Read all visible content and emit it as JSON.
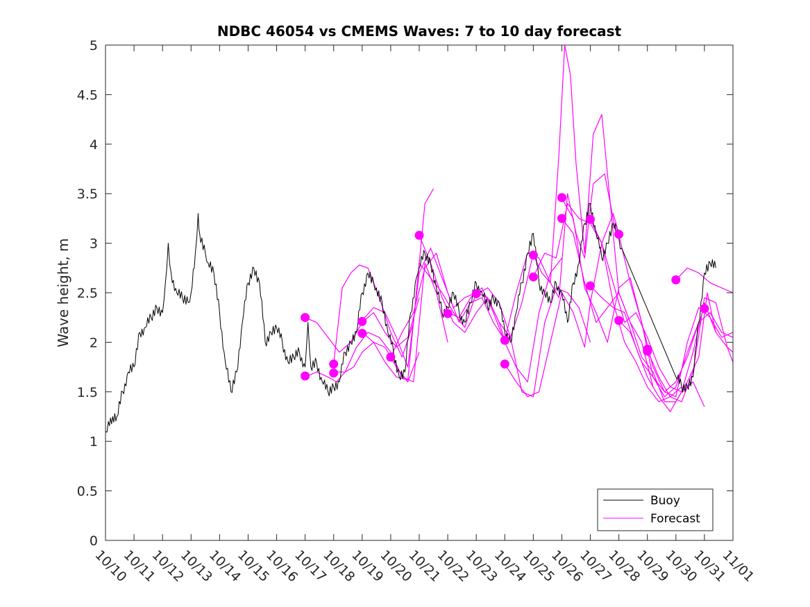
{
  "chart_data": {
    "type": "line",
    "title": "NDBC 46054 vs CMEMS Waves: 7 to 10 day forecast",
    "xlabel": "",
    "ylabel": "Wave height, m",
    "xlim": [
      0,
      22
    ],
    "ylim": [
      0,
      5
    ],
    "x_ticks": [
      0,
      1,
      2,
      3,
      4,
      5,
      6,
      7,
      8,
      9,
      10,
      11,
      12,
      13,
      14,
      15,
      16,
      17,
      18,
      19,
      20,
      21,
      22
    ],
    "x_tick_labels": [
      "10/10",
      "10/11",
      "10/12",
      "10/13",
      "10/14",
      "10/15",
      "10/16",
      "10/17",
      "10/18",
      "10/19",
      "10/20",
      "10/21",
      "10/22",
      "10/23",
      "10/24",
      "10/25",
      "10/26",
      "10/27",
      "10/28",
      "10/29",
      "10/30",
      "10/31",
      "11/01"
    ],
    "y_ticks": [
      0,
      0.5,
      1,
      1.5,
      2,
      2.5,
      3,
      3.5,
      4,
      4.5,
      5
    ],
    "y_tick_labels": [
      "0",
      "0.5",
      "1",
      "1.5",
      "2",
      "2.5",
      "3",
      "3.5",
      "4",
      "4.5",
      "5"
    ],
    "grid": false,
    "legend": {
      "location": "bottom-right",
      "entries": [
        {
          "label": "Buoy",
          "color": "#000000"
        },
        {
          "label": "Forecast",
          "color": "#ff00ff"
        }
      ]
    },
    "colors": {
      "buoy": "#000000",
      "forecast": "#ff00ff",
      "axes": "#262626"
    },
    "buoy": {
      "name": "Buoy",
      "x": [
        0,
        0.1,
        0.25,
        0.4,
        0.6,
        0.8,
        1.0,
        1.2,
        1.4,
        1.6,
        1.8,
        2.0,
        2.1,
        2.2,
        2.3,
        2.5,
        2.7,
        2.9,
        3.0,
        3.15,
        3.25,
        3.3,
        3.5,
        3.6,
        3.8,
        4.0,
        4.2,
        4.4,
        4.6,
        4.8,
        5.0,
        5.2,
        5.4,
        5.6,
        5.8,
        6.0,
        6.2,
        6.4,
        6.6,
        6.8,
        7.0,
        7.1,
        7.2,
        7.4,
        7.6,
        7.8,
        8.0,
        8.2,
        8.4,
        8.6,
        8.8,
        9.0,
        9.2,
        9.4,
        9.5,
        9.7,
        9.9,
        10.1,
        10.3,
        10.5,
        10.7,
        10.9,
        11.0,
        11.2,
        11.4,
        11.6,
        11.8,
        12.0,
        12.2,
        12.4,
        12.6,
        12.8,
        13.0,
        13.2,
        13.4,
        13.6,
        13.8,
        14.0,
        14.2,
        14.4,
        14.6,
        14.8,
        15.0,
        15.2,
        15.4,
        15.6,
        15.8,
        16.0,
        16.2,
        16.4,
        16.6,
        16.8,
        17.0,
        17.2,
        17.4,
        17.6,
        17.8,
        18.0,
        18.1,
        20.0,
        20.2,
        20.4,
        20.6,
        20.8,
        21.0,
        21.2,
        21.4
      ],
      "values": [
        1.1,
        1.2,
        1.25,
        1.25,
        1.5,
        1.7,
        1.75,
        2.1,
        2.15,
        2.25,
        2.35,
        2.3,
        2.6,
        3.0,
        2.7,
        2.5,
        2.45,
        2.4,
        2.5,
        2.9,
        3.3,
        3.1,
        2.9,
        2.8,
        2.7,
        2.3,
        1.8,
        1.5,
        1.7,
        2.2,
        2.6,
        2.75,
        2.6,
        2.0,
        2.1,
        2.15,
        2.0,
        1.8,
        1.85,
        1.9,
        1.75,
        2.2,
        1.75,
        1.8,
        1.6,
        1.5,
        1.55,
        1.6,
        1.9,
        2.0,
        2.1,
        2.5,
        2.7,
        2.6,
        2.55,
        2.4,
        2.1,
        1.9,
        1.65,
        1.7,
        2.3,
        2.65,
        2.75,
        2.9,
        2.8,
        2.55,
        2.3,
        2.35,
        2.5,
        2.3,
        2.2,
        2.4,
        2.6,
        2.5,
        2.35,
        2.45,
        2.4,
        2.1,
        2.0,
        2.3,
        2.6,
        2.9,
        3.1,
        2.6,
        2.5,
        2.4,
        2.6,
        2.5,
        2.2,
        2.6,
        2.8,
        3.2,
        3.4,
        3.1,
        2.85,
        3.0,
        3.2,
        3.05,
        2.95,
        1.65,
        1.55,
        1.55,
        1.65,
        2.2,
        2.7,
        2.8,
        2.75
      ]
    },
    "forecast_series": [
      {
        "name": "Forecast run 1",
        "x": [
          7.0,
          7.4,
          7.8,
          8.2,
          8.6,
          9.0,
          9.4,
          9.8,
          10.2,
          10.6,
          11.0
        ],
        "values": [
          2.25,
          2.2,
          2.05,
          1.9,
          2.0,
          2.2,
          2.3,
          2.1,
          1.95,
          2.05,
          2.45
        ]
      },
      {
        "name": "Forecast run 2",
        "x": [
          7.0,
          7.4,
          7.8,
          8.1,
          8.4,
          8.7,
          9.0,
          9.4,
          9.8,
          10.2,
          10.6,
          11.0
        ],
        "values": [
          1.65,
          1.7,
          1.65,
          1.6,
          1.7,
          1.75,
          1.9,
          2.0,
          1.95,
          1.75,
          1.6,
          1.9
        ]
      },
      {
        "name": "Forecast run 3",
        "x": [
          8.0,
          8.3,
          8.6,
          8.9,
          9.2,
          9.6,
          10.0,
          10.4,
          10.8,
          11.2,
          11.5
        ],
        "values": [
          1.78,
          2.55,
          2.7,
          2.78,
          2.75,
          2.45,
          2.1,
          1.85,
          2.2,
          3.4,
          3.55
        ]
      },
      {
        "name": "Forecast run 4",
        "x": [
          8.0,
          8.4,
          8.8,
          9.2,
          9.6,
          10.0,
          10.4,
          10.8,
          11.2,
          11.6,
          12.0
        ],
        "values": [
          1.7,
          1.7,
          1.95,
          2.1,
          2.05,
          1.9,
          1.65,
          1.6,
          2.8,
          2.5,
          2.0
        ]
      },
      {
        "name": "Forecast run 5",
        "x": [
          9.0,
          9.4,
          9.8,
          10.2,
          10.6,
          11.0,
          11.4,
          11.8,
          12.2,
          12.6,
          13.0
        ],
        "values": [
          2.22,
          2.35,
          2.3,
          2.05,
          1.75,
          2.7,
          2.95,
          2.65,
          2.35,
          2.45,
          2.5
        ]
      },
      {
        "name": "Forecast run 6",
        "x": [
          9.0,
          9.4,
          9.8,
          10.2,
          10.6,
          11.0,
          11.4,
          11.8,
          12.2,
          12.6,
          13.0,
          13.4,
          13.8,
          14.0
        ],
        "values": [
          2.1,
          2.0,
          1.8,
          1.65,
          1.62,
          2.8,
          2.65,
          2.5,
          2.3,
          2.15,
          2.5,
          2.45,
          2.2,
          2.02
        ]
      },
      {
        "name": "Forecast run 7",
        "x": [
          10.0,
          10.4,
          10.8,
          11.2,
          11.6,
          12.0,
          12.4,
          12.8,
          13.2,
          13.6,
          14.0
        ],
        "values": [
          1.85,
          2.1,
          2.3,
          2.75,
          2.9,
          2.5,
          2.2,
          2.4,
          2.45,
          2.2,
          2.02
        ]
      },
      {
        "name": "Forecast run 8",
        "x": [
          11.0,
          11.4,
          11.8,
          12.2,
          12.6,
          13.0,
          13.4,
          13.8,
          14.2,
          14.6,
          15.0
        ],
        "values": [
          3.08,
          2.8,
          2.45,
          2.2,
          2.1,
          2.3,
          2.45,
          2.2,
          2.05,
          2.4,
          2.9
        ]
      },
      {
        "name": "Forecast run 9",
        "x": [
          12.0,
          12.4,
          12.8,
          13.2,
          13.6,
          14.0,
          14.4,
          14.8,
          15.2,
          15.6,
          16.0
        ],
        "values": [
          2.3,
          2.25,
          2.45,
          2.55,
          2.3,
          2.0,
          1.75,
          1.6,
          2.3,
          2.7,
          2.85
        ]
      },
      {
        "name": "Forecast run 10",
        "x": [
          13.0,
          13.4,
          13.8,
          14.2,
          14.6,
          15.0,
          15.4,
          15.8,
          16.2,
          16.6,
          17.0
        ],
        "values": [
          2.48,
          2.55,
          2.4,
          2.05,
          1.5,
          1.45,
          2.2,
          2.55,
          2.5,
          2.35,
          2.0
        ]
      },
      {
        "name": "Forecast run 11",
        "x": [
          14.0,
          14.4,
          14.8,
          15.2,
          15.6,
          16.0,
          16.4,
          16.8,
          17.0,
          17.4,
          17.8,
          18.0
        ],
        "values": [
          1.78,
          1.6,
          1.45,
          1.5,
          2.0,
          2.5,
          2.3,
          1.95,
          2.4,
          3.0,
          3.3,
          3.1
        ]
      },
      {
        "name": "Forecast run 12",
        "x": [
          14.0,
          14.4,
          14.8,
          15.2,
          15.6,
          15.9,
          16.2,
          16.5,
          16.8,
          17.1,
          17.5,
          17.9
        ],
        "values": [
          2.02,
          2.5,
          2.9,
          2.85,
          2.6,
          2.45,
          3.5,
          3.1,
          2.85,
          3.6,
          3.7,
          3.1
        ]
      },
      {
        "name": "Forecast run 13",
        "x": [
          15.0,
          15.3,
          15.6,
          15.9,
          16.1,
          16.3,
          16.5,
          16.8,
          17.1,
          17.4,
          17.7,
          18.0,
          18.4,
          18.8,
          19.2
        ],
        "values": [
          2.88,
          2.7,
          2.6,
          3.9,
          5.0,
          4.7,
          3.8,
          2.9,
          4.1,
          4.3,
          3.4,
          2.5,
          2.2,
          2.0,
          1.55
        ]
      },
      {
        "name": "Forecast run 14",
        "x": [
          15.0,
          15.4,
          15.8,
          16.2,
          16.6,
          17.0,
          17.4,
          17.8,
          18.2,
          18.6,
          19.0,
          19.4,
          19.8,
          20.2
        ],
        "values": [
          2.66,
          2.9,
          2.85,
          3.4,
          3.25,
          3.2,
          3.0,
          2.4,
          2.0,
          1.8,
          1.55,
          1.4,
          1.45,
          1.55
        ]
      },
      {
        "name": "Forecast run 15",
        "x": [
          16.0,
          16.4,
          16.8,
          17.2,
          17.6,
          18.0,
          18.4,
          18.8,
          19.2,
          19.6,
          20.0,
          20.4,
          20.8
        ],
        "values": [
          3.45,
          3.25,
          2.55,
          2.3,
          2.0,
          2.55,
          2.65,
          2.2,
          1.65,
          1.45,
          1.55,
          1.9,
          2.2
        ]
      },
      {
        "name": "Forecast run 16",
        "x": [
          16.0,
          16.4,
          16.8,
          17.2,
          17.6,
          18.0,
          18.4,
          18.8,
          19.2,
          19.6,
          20.0,
          20.4,
          20.8,
          21.1,
          21.4
        ],
        "values": [
          3.25,
          3.1,
          2.6,
          2.2,
          2.35,
          2.5,
          2.2,
          1.85,
          1.7,
          1.4,
          1.4,
          1.6,
          1.85,
          2.5,
          2.1
        ]
      },
      {
        "name": "Forecast run 17",
        "x": [
          17.0,
          17.4,
          17.8,
          18.2,
          18.6,
          19.0,
          19.4,
          19.8,
          20.2,
          20.6,
          21.0,
          21.4,
          21.8,
          22.0
        ],
        "values": [
          3.24,
          3.0,
          2.6,
          2.2,
          2.3,
          2.05,
          1.75,
          1.55,
          1.5,
          1.9,
          2.4,
          2.1,
          1.95,
          1.9
        ]
      },
      {
        "name": "Forecast run 18",
        "x": [
          17.0,
          17.4,
          17.8,
          18.2,
          18.6,
          19.0,
          19.4,
          19.8,
          20.2,
          20.6,
          21.0
        ],
        "values": [
          2.57,
          2.45,
          2.35,
          2.3,
          1.95,
          1.65,
          1.45,
          1.3,
          1.5,
          1.6,
          1.35
        ]
      },
      {
        "name": "Forecast run 19",
        "x": [
          18.0,
          18.4,
          18.8,
          19.2,
          19.6,
          20.0,
          20.4,
          20.8,
          21.2,
          21.6,
          22.0
        ],
        "values": [
          3.08,
          2.6,
          2.2,
          1.75,
          1.5,
          1.45,
          2.0,
          2.35,
          2.25,
          2.05,
          2.1
        ]
      },
      {
        "name": "Forecast run 20",
        "x": [
          18.0,
          18.4,
          18.8,
          19.2,
          19.6,
          20.0,
          20.4,
          20.8,
          21.2,
          21.6,
          22.0
        ],
        "values": [
          2.22,
          2.1,
          1.8,
          1.65,
          1.5,
          1.6,
          1.85,
          2.2,
          2.3,
          2.1,
          2.05
        ]
      },
      {
        "name": "Forecast run 21",
        "x": [
          19.0,
          19.4,
          19.8,
          20.2,
          20.6,
          21.0,
          21.4,
          21.8,
          22.0
        ],
        "values": [
          1.92,
          1.65,
          1.45,
          1.4,
          1.7,
          2.45,
          2.4,
          1.95,
          1.8
        ]
      },
      {
        "name": "Forecast run 22",
        "x": [
          20.0,
          20.4,
          20.8,
          21.2,
          21.6,
          22.0
        ],
        "values": [
          2.63,
          2.75,
          2.7,
          2.6,
          2.55,
          2.5
        ]
      }
    ],
    "forecast_markers": {
      "x": [
        7.0,
        7.0,
        8.0,
        8.0,
        9.0,
        9.0,
        10.0,
        11.0,
        12.0,
        13.0,
        14.0,
        14.0,
        15.0,
        15.0,
        16.0,
        16.0,
        17.0,
        17.0,
        18.0,
        18.0,
        19.0,
        19.0,
        20.0,
        21.0
      ],
      "values": [
        2.25,
        1.66,
        1.78,
        1.69,
        2.21,
        2.09,
        1.85,
        3.08,
        2.29,
        2.49,
        2.02,
        1.78,
        2.88,
        2.66,
        3.46,
        3.25,
        3.24,
        2.57,
        3.09,
        2.22,
        1.93,
        1.91,
        2.63,
        2.34
      ]
    }
  }
}
